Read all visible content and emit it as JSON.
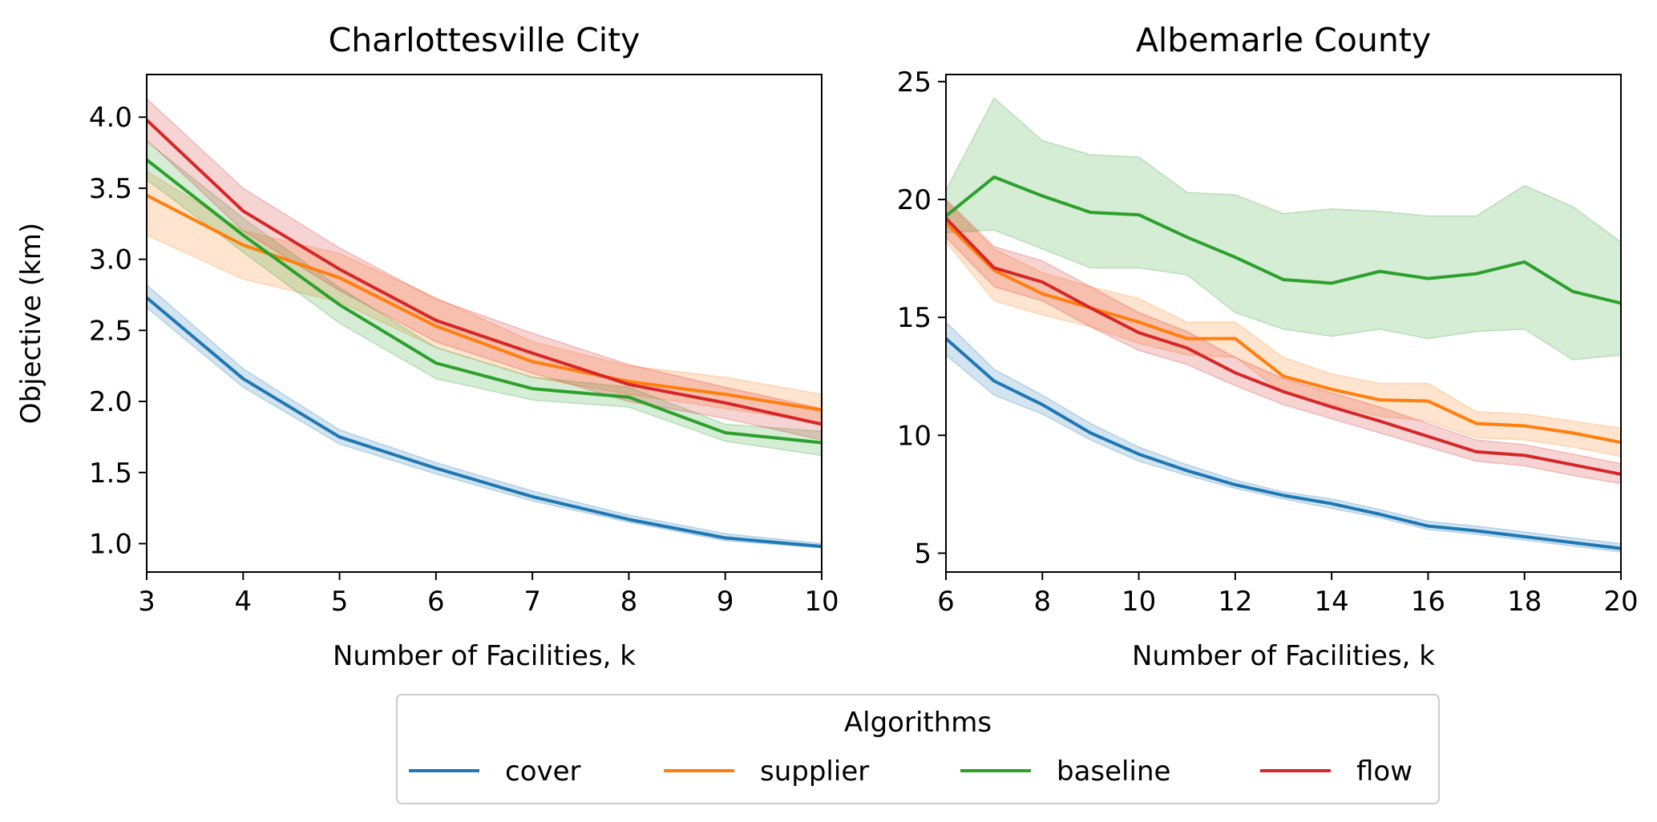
{
  "chart_data": [
    {
      "type": "line",
      "title": "Charlottesville City",
      "xlabel": "Number of Facilities, k",
      "ylabel": "Objective (km)",
      "xlim": [
        3,
        10
      ],
      "ylim": [
        0.8,
        4.3
      ],
      "xticks": [
        3,
        4,
        5,
        6,
        7,
        8,
        9,
        10
      ],
      "yticks": [
        1.0,
        1.5,
        2.0,
        2.5,
        3.0,
        3.5,
        4.0
      ],
      "x": [
        3,
        4,
        5,
        6,
        7,
        8,
        9,
        10
      ],
      "grid": false,
      "series": [
        {
          "name": "cover",
          "color": "#1f77b4",
          "values": [
            2.73,
            2.16,
            1.75,
            1.53,
            1.33,
            1.17,
            1.04,
            0.98
          ],
          "lower": [
            2.66,
            2.1,
            1.7,
            1.49,
            1.3,
            1.15,
            1.02,
            0.97
          ],
          "upper": [
            2.82,
            2.23,
            1.8,
            1.57,
            1.37,
            1.2,
            1.07,
            1.0
          ]
        },
        {
          "name": "supplier",
          "color": "#ff7f0e",
          "values": [
            3.45,
            3.1,
            2.87,
            2.53,
            2.28,
            2.14,
            2.05,
            1.94
          ],
          "lower": [
            3.17,
            2.86,
            2.7,
            2.38,
            2.17,
            2.05,
            1.95,
            1.85
          ],
          "upper": [
            3.62,
            3.2,
            3.04,
            2.73,
            2.42,
            2.25,
            2.17,
            2.05
          ]
        },
        {
          "name": "baseline",
          "color": "#2ca02c",
          "values": [
            3.7,
            3.17,
            2.68,
            2.27,
            2.09,
            2.03,
            1.78,
            1.71
          ],
          "lower": [
            3.56,
            3.05,
            2.55,
            2.16,
            2.01,
            1.96,
            1.72,
            1.62
          ],
          "upper": [
            3.83,
            3.29,
            2.8,
            2.38,
            2.17,
            2.1,
            1.84,
            1.79
          ]
        },
        {
          "name": "flow",
          "color": "#d62728",
          "values": [
            3.98,
            3.34,
            2.93,
            2.57,
            2.34,
            2.12,
            1.99,
            1.84
          ],
          "lower": [
            3.84,
            3.2,
            2.78,
            2.42,
            2.2,
            2.0,
            1.88,
            1.73
          ],
          "upper": [
            4.13,
            3.5,
            3.08,
            2.72,
            2.48,
            2.26,
            2.1,
            1.95
          ]
        }
      ]
    },
    {
      "type": "line",
      "title": "Albemarle County",
      "xlabel": "Number of Facilities, k",
      "ylabel": "",
      "xlim": [
        6,
        20
      ],
      "ylim": [
        4.2,
        25.3
      ],
      "xticks": [
        6,
        8,
        10,
        12,
        14,
        16,
        18,
        20
      ],
      "yticks": [
        5,
        10,
        15,
        20,
        25
      ],
      "x": [
        6,
        7,
        8,
        9,
        10,
        11,
        12,
        13,
        14,
        15,
        16,
        17,
        18,
        19,
        20
      ],
      "grid": false,
      "series": [
        {
          "name": "cover",
          "color": "#1f77b4",
          "values": [
            14.1,
            12.3,
            11.3,
            10.1,
            9.2,
            8.5,
            7.9,
            7.45,
            7.1,
            6.65,
            6.15,
            5.95,
            5.7,
            5.45,
            5.2
          ],
          "lower": [
            13.4,
            11.7,
            10.9,
            9.8,
            8.9,
            8.3,
            7.75,
            7.3,
            6.9,
            6.5,
            6.0,
            5.8,
            5.55,
            5.3,
            5.05
          ],
          "upper": [
            14.8,
            12.8,
            11.7,
            10.5,
            9.5,
            8.75,
            8.1,
            7.6,
            7.3,
            6.85,
            6.35,
            6.15,
            5.9,
            5.65,
            5.4
          ]
        },
        {
          "name": "supplier",
          "color": "#ff7f0e",
          "values": [
            19.0,
            17.0,
            16.0,
            15.4,
            14.8,
            14.1,
            14.1,
            12.5,
            11.95,
            11.5,
            11.45,
            10.5,
            10.4,
            10.1,
            9.7
          ],
          "lower": [
            18.2,
            15.7,
            15.1,
            14.6,
            13.9,
            13.4,
            13.3,
            11.8,
            11.3,
            10.8,
            10.6,
            9.9,
            9.8,
            9.5,
            9.1
          ],
          "upper": [
            19.9,
            17.9,
            16.9,
            16.3,
            15.8,
            14.8,
            14.8,
            13.3,
            12.6,
            12.2,
            12.2,
            11.0,
            10.9,
            10.6,
            10.3
          ]
        },
        {
          "name": "baseline",
          "color": "#2ca02c",
          "values": [
            19.3,
            20.95,
            20.15,
            19.45,
            19.35,
            18.4,
            17.55,
            16.6,
            16.45,
            16.95,
            16.65,
            16.85,
            17.35,
            16.1,
            15.6
          ],
          "lower": [
            18.6,
            18.7,
            17.9,
            17.1,
            17.1,
            16.8,
            15.2,
            14.5,
            14.2,
            14.5,
            14.1,
            14.4,
            14.5,
            13.2,
            13.4
          ],
          "upper": [
            20.4,
            24.3,
            22.5,
            21.9,
            21.8,
            20.3,
            20.2,
            19.4,
            19.6,
            19.5,
            19.3,
            19.3,
            20.6,
            19.7,
            18.2
          ]
        },
        {
          "name": "flow",
          "color": "#d62728",
          "values": [
            19.2,
            17.1,
            16.5,
            15.4,
            14.35,
            13.7,
            12.65,
            11.85,
            11.2,
            10.6,
            9.95,
            9.3,
            9.15,
            8.75,
            8.35
          ],
          "lower": [
            18.4,
            16.3,
            15.7,
            14.6,
            13.6,
            13.0,
            12.1,
            11.3,
            10.7,
            10.1,
            9.5,
            8.9,
            8.7,
            8.3,
            7.95
          ],
          "upper": [
            20.0,
            18.0,
            17.4,
            16.3,
            15.2,
            14.4,
            13.3,
            12.4,
            11.8,
            11.2,
            10.5,
            9.8,
            9.6,
            9.2,
            8.8
          ]
        }
      ]
    }
  ],
  "legend": {
    "title": "Algorithms",
    "placement": "bottom-center",
    "entries": [
      {
        "label": "cover",
        "color": "#1f77b4"
      },
      {
        "label": "supplier",
        "color": "#ff7f0e"
      },
      {
        "label": "baseline",
        "color": "#2ca02c"
      },
      {
        "label": "flow",
        "color": "#d62728"
      }
    ]
  }
}
